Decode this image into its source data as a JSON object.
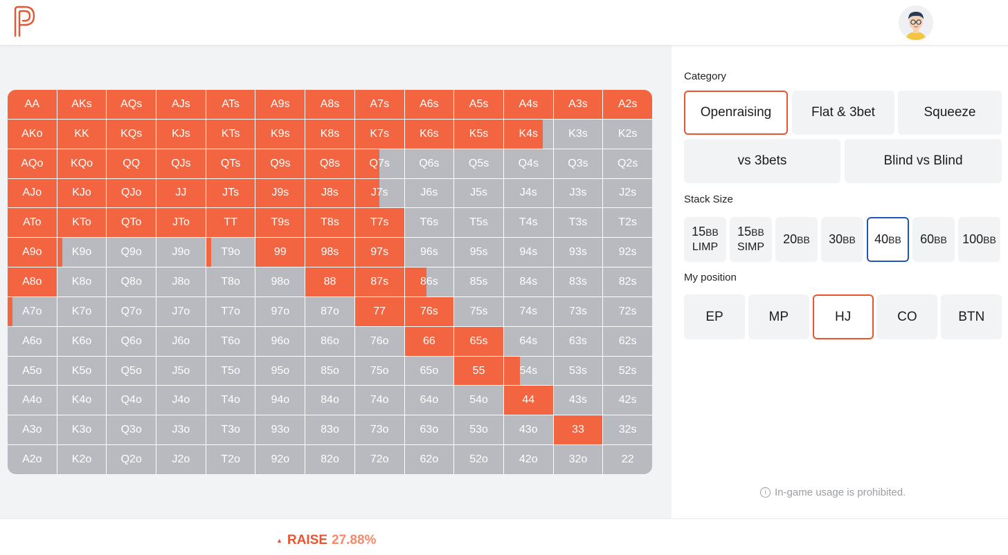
{
  "header": {
    "logo_icon": "p-logo-icon",
    "avatar_icon": "user-avatar-icon"
  },
  "colors": {
    "raise": "#f26540",
    "fold": "#b8babf",
    "accent_orange": "#e8542f",
    "accent_blue": "#1f54b8"
  },
  "grid": {
    "rows": [
      [
        {
          "h": "AA",
          "r": 100
        },
        {
          "h": "AKs",
          "r": 100
        },
        {
          "h": "AQs",
          "r": 100
        },
        {
          "h": "AJs",
          "r": 100
        },
        {
          "h": "ATs",
          "r": 100
        },
        {
          "h": "A9s",
          "r": 100
        },
        {
          "h": "A8s",
          "r": 100
        },
        {
          "h": "A7s",
          "r": 100
        },
        {
          "h": "A6s",
          "r": 100
        },
        {
          "h": "A5s",
          "r": 100
        },
        {
          "h": "A4s",
          "r": 100
        },
        {
          "h": "A3s",
          "r": 100
        },
        {
          "h": "A2s",
          "r": 100
        }
      ],
      [
        {
          "h": "AKo",
          "r": 100
        },
        {
          "h": "KK",
          "r": 100
        },
        {
          "h": "KQs",
          "r": 100
        },
        {
          "h": "KJs",
          "r": 100
        },
        {
          "h": "KTs",
          "r": 100
        },
        {
          "h": "K9s",
          "r": 100
        },
        {
          "h": "K8s",
          "r": 100
        },
        {
          "h": "K7s",
          "r": 100
        },
        {
          "h": "K6s",
          "r": 100
        },
        {
          "h": "K5s",
          "r": 100
        },
        {
          "h": "K4s",
          "r": 80
        },
        {
          "h": "K3s",
          "r": 0
        },
        {
          "h": "K2s",
          "r": 0
        }
      ],
      [
        {
          "h": "AQo",
          "r": 100
        },
        {
          "h": "KQo",
          "r": 100
        },
        {
          "h": "QQ",
          "r": 100
        },
        {
          "h": "QJs",
          "r": 100
        },
        {
          "h": "QTs",
          "r": 100
        },
        {
          "h": "Q9s",
          "r": 100
        },
        {
          "h": "Q8s",
          "r": 100
        },
        {
          "h": "Q7s",
          "r": 50
        },
        {
          "h": "Q6s",
          "r": 0
        },
        {
          "h": "Q5s",
          "r": 0
        },
        {
          "h": "Q4s",
          "r": 0
        },
        {
          "h": "Q3s",
          "r": 0
        },
        {
          "h": "Q2s",
          "r": 0
        }
      ],
      [
        {
          "h": "AJo",
          "r": 100
        },
        {
          "h": "KJo",
          "r": 100
        },
        {
          "h": "QJo",
          "r": 100
        },
        {
          "h": "JJ",
          "r": 100
        },
        {
          "h": "JTs",
          "r": 100
        },
        {
          "h": "J9s",
          "r": 100
        },
        {
          "h": "J8s",
          "r": 100
        },
        {
          "h": "J7s",
          "r": 50
        },
        {
          "h": "J6s",
          "r": 0
        },
        {
          "h": "J5s",
          "r": 0
        },
        {
          "h": "J4s",
          "r": 0
        },
        {
          "h": "J3s",
          "r": 0
        },
        {
          "h": "J2s",
          "r": 0
        }
      ],
      [
        {
          "h": "ATo",
          "r": 100
        },
        {
          "h": "KTo",
          "r": 100
        },
        {
          "h": "QTo",
          "r": 100
        },
        {
          "h": "JTo",
          "r": 100
        },
        {
          "h": "TT",
          "r": 100
        },
        {
          "h": "T9s",
          "r": 100
        },
        {
          "h": "T8s",
          "r": 100
        },
        {
          "h": "T7s",
          "r": 100
        },
        {
          "h": "T6s",
          "r": 0
        },
        {
          "h": "T5s",
          "r": 0
        },
        {
          "h": "T4s",
          "r": 0
        },
        {
          "h": "T3s",
          "r": 0
        },
        {
          "h": "T2s",
          "r": 0
        }
      ],
      [
        {
          "h": "A9o",
          "r": 100
        },
        {
          "h": "K9o",
          "r": 10
        },
        {
          "h": "Q9o",
          "r": 0
        },
        {
          "h": "J9o",
          "r": 0
        },
        {
          "h": "T9o",
          "r": 10
        },
        {
          "h": "99",
          "r": 100
        },
        {
          "h": "98s",
          "r": 100
        },
        {
          "h": "97s",
          "r": 100
        },
        {
          "h": "96s",
          "r": 0
        },
        {
          "h": "95s",
          "r": 0
        },
        {
          "h": "94s",
          "r": 0
        },
        {
          "h": "93s",
          "r": 0
        },
        {
          "h": "92s",
          "r": 0
        }
      ],
      [
        {
          "h": "A8o",
          "r": 100
        },
        {
          "h": "K8o",
          "r": 0
        },
        {
          "h": "Q8o",
          "r": 0
        },
        {
          "h": "J8o",
          "r": 0
        },
        {
          "h": "T8o",
          "r": 0
        },
        {
          "h": "98o",
          "r": 0
        },
        {
          "h": "88",
          "r": 100
        },
        {
          "h": "87s",
          "r": 100
        },
        {
          "h": "86s",
          "r": 45
        },
        {
          "h": "85s",
          "r": 0
        },
        {
          "h": "84s",
          "r": 0
        },
        {
          "h": "83s",
          "r": 0
        },
        {
          "h": "82s",
          "r": 0
        }
      ],
      [
        {
          "h": "A7o",
          "r": 10
        },
        {
          "h": "K7o",
          "r": 0
        },
        {
          "h": "Q7o",
          "r": 0
        },
        {
          "h": "J7o",
          "r": 0
        },
        {
          "h": "T7o",
          "r": 0
        },
        {
          "h": "97o",
          "r": 0
        },
        {
          "h": "87o",
          "r": 0
        },
        {
          "h": "77",
          "r": 100
        },
        {
          "h": "76s",
          "r": 100
        },
        {
          "h": "75s",
          "r": 0
        },
        {
          "h": "74s",
          "r": 0
        },
        {
          "h": "73s",
          "r": 0
        },
        {
          "h": "72s",
          "r": 0
        }
      ],
      [
        {
          "h": "A6o",
          "r": 0
        },
        {
          "h": "K6o",
          "r": 0
        },
        {
          "h": "Q6o",
          "r": 0
        },
        {
          "h": "J6o",
          "r": 0
        },
        {
          "h": "T6o",
          "r": 0
        },
        {
          "h": "96o",
          "r": 0
        },
        {
          "h": "86o",
          "r": 0
        },
        {
          "h": "76o",
          "r": 0
        },
        {
          "h": "66",
          "r": 100
        },
        {
          "h": "65s",
          "r": 100
        },
        {
          "h": "64s",
          "r": 0
        },
        {
          "h": "63s",
          "r": 0
        },
        {
          "h": "62s",
          "r": 0
        }
      ],
      [
        {
          "h": "A5o",
          "r": 0
        },
        {
          "h": "K5o",
          "r": 0
        },
        {
          "h": "Q5o",
          "r": 0
        },
        {
          "h": "J5o",
          "r": 0
        },
        {
          "h": "T5o",
          "r": 0
        },
        {
          "h": "95o",
          "r": 0
        },
        {
          "h": "85o",
          "r": 0
        },
        {
          "h": "75o",
          "r": 0
        },
        {
          "h": "65o",
          "r": 0
        },
        {
          "h": "55",
          "r": 100
        },
        {
          "h": "54s",
          "r": 33
        },
        {
          "h": "53s",
          "r": 0
        },
        {
          "h": "52s",
          "r": 0
        }
      ],
      [
        {
          "h": "A4o",
          "r": 0
        },
        {
          "h": "K4o",
          "r": 0
        },
        {
          "h": "Q4o",
          "r": 0
        },
        {
          "h": "J4o",
          "r": 0
        },
        {
          "h": "T4o",
          "r": 0
        },
        {
          "h": "94o",
          "r": 0
        },
        {
          "h": "84o",
          "r": 0
        },
        {
          "h": "74o",
          "r": 0
        },
        {
          "h": "64o",
          "r": 0
        },
        {
          "h": "54o",
          "r": 0
        },
        {
          "h": "44",
          "r": 100
        },
        {
          "h": "43s",
          "r": 0
        },
        {
          "h": "42s",
          "r": 0
        }
      ],
      [
        {
          "h": "A3o",
          "r": 0
        },
        {
          "h": "K3o",
          "r": 0
        },
        {
          "h": "Q3o",
          "r": 0
        },
        {
          "h": "J3o",
          "r": 0
        },
        {
          "h": "T3o",
          "r": 0
        },
        {
          "h": "93o",
          "r": 0
        },
        {
          "h": "83o",
          "r": 0
        },
        {
          "h": "73o",
          "r": 0
        },
        {
          "h": "63o",
          "r": 0
        },
        {
          "h": "53o",
          "r": 0
        },
        {
          "h": "43o",
          "r": 0
        },
        {
          "h": "33",
          "r": 100
        },
        {
          "h": "32s",
          "r": 0
        }
      ],
      [
        {
          "h": "A2o",
          "r": 0
        },
        {
          "h": "K2o",
          "r": 0
        },
        {
          "h": "Q2o",
          "r": 0
        },
        {
          "h": "J2o",
          "r": 0
        },
        {
          "h": "T2o",
          "r": 0
        },
        {
          "h": "92o",
          "r": 0
        },
        {
          "h": "82o",
          "r": 0
        },
        {
          "h": "72o",
          "r": 0
        },
        {
          "h": "62o",
          "r": 0
        },
        {
          "h": "52o",
          "r": 0
        },
        {
          "h": "42o",
          "r": 0
        },
        {
          "h": "32o",
          "r": 0
        },
        {
          "h": "22",
          "r": 0
        }
      ]
    ]
  },
  "sidebar": {
    "category_title": "Category",
    "categories": [
      {
        "label": "Openraising",
        "selected": true
      },
      {
        "label": "Flat & 3bet",
        "selected": false
      },
      {
        "label": "Squeeze",
        "selected": false
      },
      {
        "label": "vs 3bets",
        "selected": false
      },
      {
        "label": "Blind vs Blind",
        "selected": false
      }
    ],
    "stack_title": "Stack Size",
    "stacks": [
      {
        "value": "15",
        "unit": "BB",
        "sub": "LIMP",
        "selected": false
      },
      {
        "value": "15",
        "unit": "BB",
        "sub": "SIMP",
        "selected": false
      },
      {
        "value": "20",
        "unit": "BB",
        "sub": "",
        "selected": false
      },
      {
        "value": "30",
        "unit": "BB",
        "sub": "",
        "selected": false
      },
      {
        "value": "40",
        "unit": "BB",
        "sub": "",
        "selected": true
      },
      {
        "value": "60",
        "unit": "BB",
        "sub": "",
        "selected": false
      },
      {
        "value": "100",
        "unit": "BB",
        "sub": "",
        "selected": false
      }
    ],
    "position_title": "My position",
    "positions": [
      {
        "label": "EP",
        "selected": false
      },
      {
        "label": "MP",
        "selected": false
      },
      {
        "label": "HJ",
        "selected": true
      },
      {
        "label": "CO",
        "selected": false
      },
      {
        "label": "BTN",
        "selected": false
      }
    ],
    "notice_icon": "info-circle-icon",
    "notice": "In-game usage is prohibited."
  },
  "footer": {
    "raise_label": "RAISE",
    "raise_pct": "27.88%",
    "triangle_icon": "triangle-up-icon"
  }
}
